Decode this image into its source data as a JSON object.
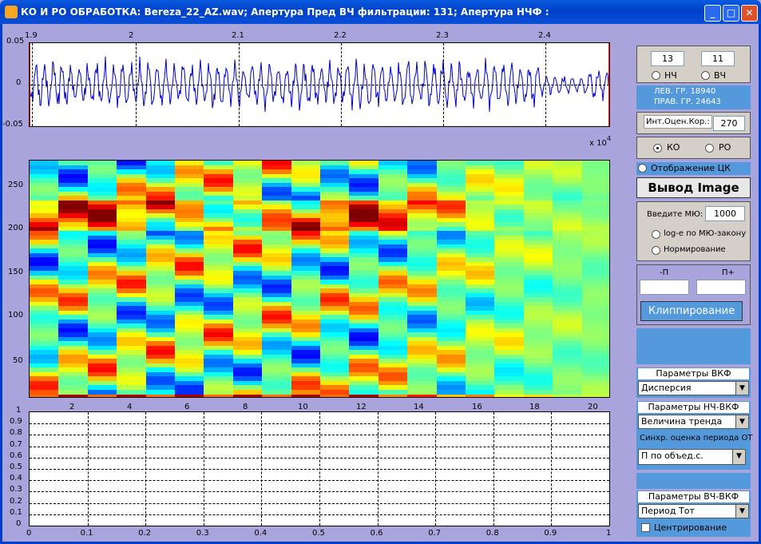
{
  "window": {
    "title": "КО И РО ОБРАБОТКА: Bereza_22_AZ.wav;  Апертура Пред ВЧ фильтрации: 131;  Апертура НЧФ :"
  },
  "wave": {
    "xticks": [
      "1.9",
      "2",
      "2.1",
      "2.2",
      "2.3",
      "2.4"
    ],
    "yticks": [
      "0.05",
      "0",
      "-0.05"
    ],
    "exp_label": "x 10",
    "exp_power": "4",
    "line_color": "#0000cc"
  },
  "heatmap": {
    "xticks": [
      "2",
      "4",
      "6",
      "8",
      "10",
      "12",
      "14",
      "16",
      "18",
      "20"
    ],
    "yticks": [
      "250",
      "200",
      "150",
      "100",
      "50"
    ]
  },
  "emptyplot": {
    "xticks": [
      "0",
      "0.1",
      "0.2",
      "0.3",
      "0.4",
      "0.5",
      "0.6",
      "0.7",
      "0.8",
      "0.9",
      "1"
    ],
    "yticks": [
      "1",
      "0.9",
      "0.8",
      "0.7",
      "0.6",
      "0.5",
      "0.4",
      "0.3",
      "0.2",
      "0.1",
      "0"
    ]
  },
  "controls": {
    "lf_value": "13",
    "hf_value": "11",
    "lf_label": "НЧ",
    "hf_label": "ВЧ",
    "left_bound": "ЛЕВ. ГР.  18940",
    "right_bound": "ПРАВ. ГР. 24643",
    "int_label": "Инт.Оцен.Кор.:",
    "int_value": "270",
    "ko_label": "КО",
    "ro_label": "РО",
    "display_ck": "Отображение ЦК",
    "output_image": "Вывод Image",
    "mu_label": "Введите МЮ:",
    "mu_value": "1000",
    "log_label": "log-e по МЮ-закону",
    "norm_label": "Нормирование",
    "p_minus": "-П",
    "p_plus": "П+",
    "clip_button": "Клиппирование",
    "vkf_header": "Параметры ВКФ",
    "vkf_select": "Дисперсия",
    "lf_vkf_header": "Параметры НЧ-ВКФ",
    "lf_vkf_select": "Величина тренда",
    "sync_label": "Синхр. оценка периода ОТ",
    "sync_select": "П по объед.с.",
    "hf_vkf_header": "Параметры ВЧ-ВКФ",
    "hf_vkf_select": "Период Тот",
    "center_label": "Центрирование"
  }
}
